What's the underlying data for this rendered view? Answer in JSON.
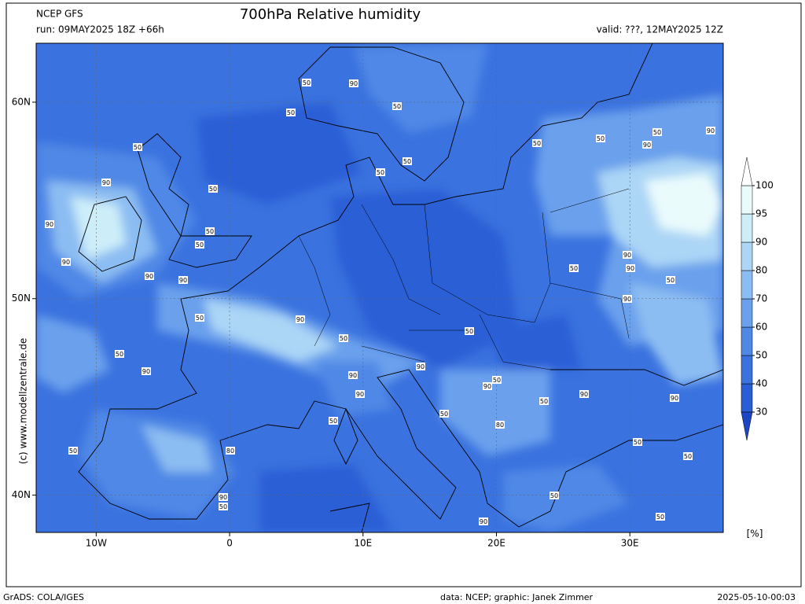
{
  "header": {
    "model": "NCEP GFS",
    "run": "run: 09MAY2025 18Z +66h",
    "title": "700hPa Relative humidity",
    "valid": "valid: ???, 12MAY2025 12Z",
    "copyright": "(c) www.modellzentrale.de"
  },
  "map": {
    "xlim": [
      -14.5,
      37
    ],
    "ylim": [
      38.1,
      63
    ],
    "xticks": [
      {
        "value": -10,
        "label": "10W"
      },
      0,
      {
        "value": 10,
        "label": "10E"
      },
      {
        "value": 20,
        "label": "20E"
      },
      {
        "value": 30,
        "label": "30E"
      }
    ],
    "yticks": [
      {
        "value": 40,
        "label": "40N"
      },
      {
        "value": 50,
        "label": "50N"
      },
      {
        "value": 60,
        "label": "60N"
      }
    ],
    "grid": true,
    "contour_labels": [
      50,
      90,
      50,
      50,
      50,
      90,
      50,
      50,
      50,
      50,
      50,
      50,
      90,
      90,
      90,
      50,
      50,
      90,
      90,
      90,
      90,
      50,
      90,
      50,
      90,
      50,
      90,
      50,
      50,
      50,
      90,
      90,
      90,
      50,
      90,
      90,
      50,
      90,
      90,
      50,
      50,
      80,
      80,
      50,
      50,
      50,
      90,
      50,
      50,
      90,
      50
    ]
  },
  "colorbar": {
    "ticks": [
      30,
      40,
      50,
      60,
      70,
      80,
      90,
      95,
      100
    ],
    "colors": [
      "#1c46c4",
      "#2a5ed6",
      "#3a72df",
      "#5088e6",
      "#6aa0ec",
      "#8cbdf2",
      "#acd6f6",
      "#cdeef9",
      "#eafbfc",
      "#ffffff"
    ],
    "unit": "[%]"
  },
  "footer": {
    "left": "GrADS: COLA/IGES",
    "center": "data: NCEP; graphic: Janek Zimmer",
    "right": "2025-05-10-00:03"
  }
}
